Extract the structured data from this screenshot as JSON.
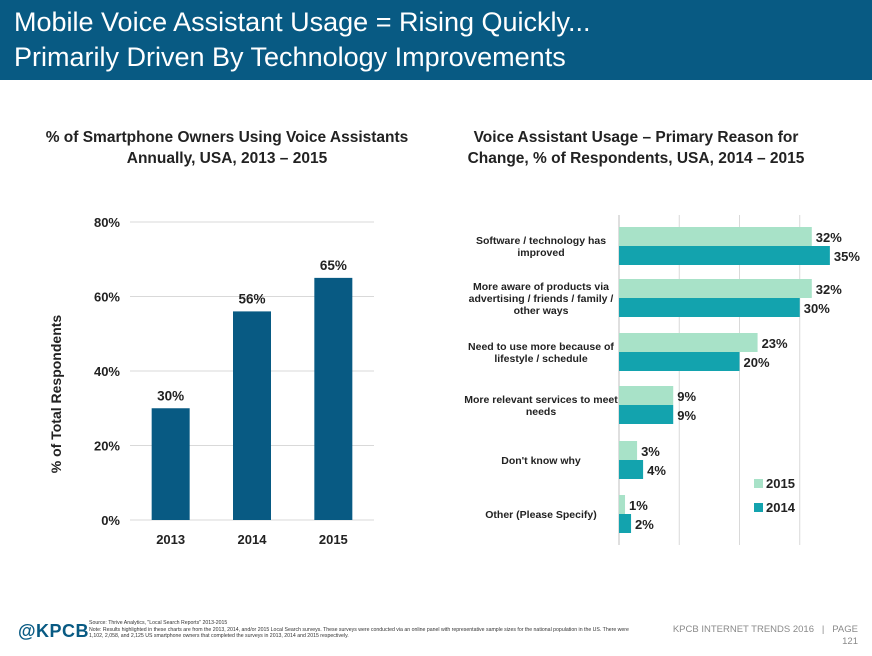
{
  "header": {
    "title_line_1": "Mobile Voice Assistant Usage = Rising Quickly...",
    "title_line_2": "Primarily Driven By Technology Improvements"
  },
  "chart_data": [
    {
      "type": "bar",
      "title": "% of Smartphone Owners Using Voice Assistants Annually, USA, 2013 – 2015",
      "title_line_1": "% of Smartphone Owners Using Voice Assistants",
      "title_line_2": "Annually, USA, 2013 – 2015",
      "categories": [
        "2013",
        "2014",
        "2015"
      ],
      "values": [
        30,
        56,
        65
      ],
      "value_labels": [
        "30%",
        "56%",
        "65%"
      ],
      "ylabel": "% of Total Respondents",
      "ylim": [
        0,
        80
      ],
      "yticks": [
        0,
        20,
        40,
        60,
        80
      ],
      "ytick_labels": [
        "0%",
        "20%",
        "40%",
        "60%",
        "80%"
      ],
      "grid": true,
      "color": "#085a83"
    },
    {
      "type": "bar",
      "orientation": "horizontal",
      "title": "Voice Assistant Usage – Primary Reason for Change, % of Respondents, USA, 2014 – 2015",
      "title_line_1": "Voice Assistant Usage – Primary Reason for",
      "title_line_2": "Change, % of Respondents, USA, 2014 – 2015",
      "categories": [
        [
          "Software / technology has",
          "improved"
        ],
        [
          "More aware of products via",
          "advertising / friends / family /",
          "other ways"
        ],
        [
          "Need to use more because of",
          "lifestyle / schedule"
        ],
        [
          "More relevant services to meet",
          "needs"
        ],
        [
          "Don't know why"
        ],
        [
          "Other (Please Specify)"
        ]
      ],
      "series": [
        {
          "name": "2015",
          "values": [
            32,
            32,
            23,
            9,
            3,
            1
          ],
          "labels": [
            "32%",
            "32%",
            "23%",
            "9%",
            "3%",
            "1%"
          ],
          "color": "#a8e2c8"
        },
        {
          "name": "2014",
          "values": [
            35,
            30,
            20,
            9,
            4,
            2
          ],
          "labels": [
            "35%",
            "30%",
            "20%",
            "9%",
            "4%",
            "2%"
          ],
          "color": "#13a3ae"
        }
      ],
      "xlim": [
        0,
        40
      ],
      "grid": true,
      "legend": "bottom-right"
    }
  ],
  "footer": {
    "logo": "@KPCB",
    "source": "Source: Thrive Analytics, \"Local Search Reports\" 2013-2015",
    "note": "Note: Results highlighted in these charts are from the 2013, 2014, and/or 2015 Local Search surveys. These surveys were conducted via an online panel with representative sample sizes for the national population in the US. There were 1,102, 2,058, and 2,125 US smartphone owners that completed the surveys in 2013, 2014 and 2015 respectively.",
    "report": "KPCB INTERNET TRENDS 2016",
    "page_label": "PAGE",
    "page_number": "121"
  }
}
